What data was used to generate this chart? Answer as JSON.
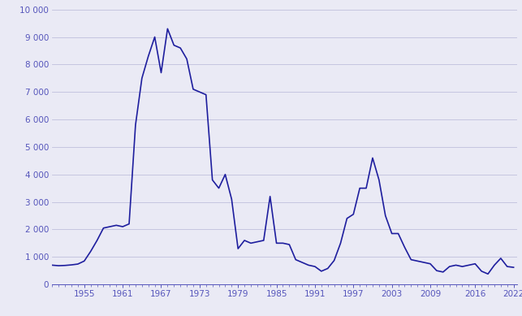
{
  "years": [
    1950,
    1951,
    1952,
    1953,
    1954,
    1955,
    1956,
    1957,
    1958,
    1959,
    1960,
    1961,
    1962,
    1963,
    1964,
    1965,
    1966,
    1967,
    1968,
    1969,
    1970,
    1971,
    1972,
    1973,
    1974,
    1975,
    1976,
    1977,
    1978,
    1979,
    1980,
    1981,
    1982,
    1983,
    1984,
    1985,
    1986,
    1987,
    1988,
    1989,
    1990,
    1991,
    1992,
    1993,
    1994,
    1995,
    1996,
    1997,
    1998,
    1999,
    2000,
    2001,
    2002,
    2003,
    2004,
    2005,
    2006,
    2007,
    2008,
    2009,
    2010,
    2011,
    2012,
    2013,
    2014,
    2015,
    2016,
    2017,
    2018,
    2019,
    2020,
    2021,
    2022
  ],
  "values": [
    700,
    680,
    690,
    710,
    740,
    850,
    1200,
    1600,
    2050,
    2100,
    2150,
    2100,
    2200,
    5800,
    7500,
    8300,
    9000,
    7700,
    9300,
    8700,
    8600,
    8200,
    7100,
    7000,
    6900,
    3800,
    3500,
    4000,
    3100,
    1300,
    1600,
    1500,
    1550,
    1600,
    3200,
    1500,
    1500,
    1450,
    900,
    800,
    700,
    650,
    480,
    580,
    870,
    1500,
    2400,
    2550,
    3500,
    3500,
    4600,
    3800,
    2500,
    1850,
    1850,
    1350,
    900,
    850,
    800,
    750,
    500,
    450,
    650,
    700,
    650,
    700,
    750,
    480,
    380,
    700,
    950,
    650,
    620
  ],
  "line_color": "#1e1e9e",
  "background_color": "#eaeaf5",
  "grid_color": "#c0c0dc",
  "text_color": "#5555bb",
  "ylim": [
    0,
    10000
  ],
  "yticks": [
    0,
    1000,
    2000,
    3000,
    4000,
    5000,
    6000,
    7000,
    8000,
    9000,
    10000
  ],
  "ytick_labels": [
    "0",
    "1 000",
    "2 000",
    "3 000",
    "4 000",
    "5 000",
    "6 000",
    "7 000",
    "8 000",
    "9 000",
    "10 000"
  ],
  "xticks": [
    1955,
    1961,
    1967,
    1973,
    1979,
    1985,
    1991,
    1997,
    2003,
    2009,
    2016,
    2022
  ],
  "xlim": [
    1950,
    2022.5
  ]
}
